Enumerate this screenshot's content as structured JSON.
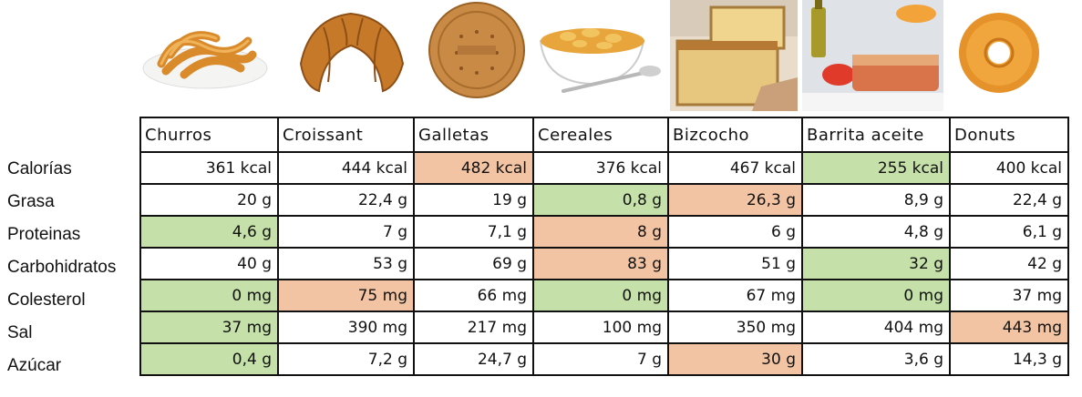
{
  "foods": [
    {
      "name": "Churros",
      "icon": "churros-image"
    },
    {
      "name": "Croissant",
      "icon": "croissant-image"
    },
    {
      "name": "Galletas",
      "icon": "galletas-image"
    },
    {
      "name": "Cereales",
      "icon": "cereales-image"
    },
    {
      "name": "Bizcocho",
      "icon": "bizcocho-image"
    },
    {
      "name": "Barrita aceite",
      "icon": "barrita-aceite-image"
    },
    {
      "name": "Donuts",
      "icon": "donuts-image"
    }
  ],
  "nutrients": [
    "Calorías",
    "Grasa",
    "Proteinas",
    "Carbohidratos",
    "Colesterol",
    "Sal",
    "Azúcar"
  ],
  "colors": {
    "good": "#c5e0a8",
    "bad": "#f2c4a3"
  },
  "values": [
    [
      "361 kcal",
      "444 kcal",
      "482 kcal",
      "376 kcal",
      "467 kcal",
      "255 kcal",
      "400 kcal"
    ],
    [
      "20 g",
      "22,4 g",
      "19 g",
      "0,8 g",
      "26,3 g",
      "8,9 g",
      "22,4 g"
    ],
    [
      "4,6 g",
      "7 g",
      "7,1 g",
      "8 g",
      "6 g",
      "4,8 g",
      "6,1 g"
    ],
    [
      "40 g",
      "53 g",
      "69 g",
      "83 g",
      "51 g",
      "32 g",
      "42 g"
    ],
    [
      "0 mg",
      "75 mg",
      "66 mg",
      "0 mg",
      "67 mg",
      "0 mg",
      "37 mg"
    ],
    [
      "37 mg",
      "390 mg",
      "217 mg",
      "100 mg",
      "350 mg",
      "404 mg",
      "443 mg"
    ],
    [
      "0,4 g",
      "7,2 g",
      "24,7 g",
      "7 g",
      "30 g",
      "3,6 g",
      "14,3 g"
    ]
  ],
  "highlights": [
    [
      "",
      "",
      "bad",
      "",
      "",
      "good",
      ""
    ],
    [
      "",
      "",
      "",
      "good",
      "bad",
      "",
      ""
    ],
    [
      "good",
      "",
      "",
      "bad",
      "",
      "",
      ""
    ],
    [
      "",
      "",
      "",
      "bad",
      "",
      "good",
      ""
    ],
    [
      "good",
      "bad",
      "",
      "good",
      "",
      "good",
      ""
    ],
    [
      "good",
      "",
      "",
      "",
      "",
      "",
      "bad"
    ],
    [
      "good",
      "",
      "",
      "",
      "bad",
      "",
      ""
    ]
  ]
}
